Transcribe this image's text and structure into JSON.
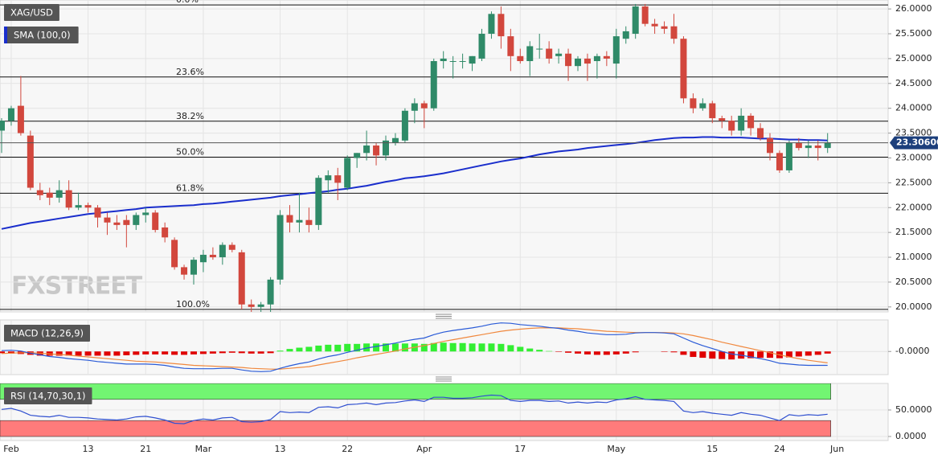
{
  "chart_data": [
    {
      "type": "candlestick",
      "watermark": "FXSTREET",
      "series": [
        {
          "name": "XAG/USD",
          "up_color": "#2f8a68",
          "down_color": "#d2473d",
          "open": [
            23.55,
            23.75,
            24.05,
            23.45,
            22.35,
            22.3,
            22.2,
            22.35,
            22.0,
            22.05,
            22.0,
            21.8,
            21.7,
            21.75,
            21.65,
            21.85,
            21.9,
            21.6,
            21.35,
            20.8,
            20.65,
            20.9,
            21.05,
            21.0,
            21.25,
            21.1,
            20.05,
            20.0,
            20.05,
            20.55,
            21.85,
            21.7,
            21.75,
            21.65,
            22.55,
            22.65,
            22.4,
            23.0,
            23.1,
            23.25,
            23.05,
            23.3,
            23.35,
            23.95,
            24.1,
            24.0,
            24.95,
            24.95,
            24.95,
            24.9,
            25.0,
            25.5,
            25.9,
            25.45,
            25.05,
            24.95,
            25.2,
            25.2,
            25.05,
            25.1,
            24.85,
            25.0,
            24.95,
            25.05,
            24.9,
            25.4,
            25.5,
            26.05,
            25.7,
            25.65,
            25.65,
            25.4,
            24.2,
            24.0,
            24.1,
            23.8,
            23.75,
            23.55,
            23.85,
            23.6,
            23.4,
            23.1,
            22.75,
            23.3,
            23.2,
            23.25,
            23.2,
            null
          ],
          "high": [
            23.8,
            24.05,
            24.65,
            23.55,
            22.5,
            22.4,
            22.55,
            22.55,
            22.3,
            22.1,
            22.05,
            21.9,
            21.85,
            21.85,
            21.9,
            22.0,
            21.95,
            21.7,
            21.4,
            20.85,
            21.0,
            21.15,
            21.2,
            21.3,
            21.3,
            21.15,
            20.15,
            20.1,
            20.6,
            21.95,
            22.05,
            22.3,
            22.0,
            22.65,
            22.75,
            22.8,
            23.05,
            23.1,
            23.55,
            23.3,
            23.45,
            23.5,
            24.0,
            24.2,
            24.15,
            25.0,
            25.15,
            25.05,
            25.1,
            25.05,
            25.6,
            25.95,
            26.05,
            25.6,
            25.2,
            25.35,
            25.5,
            25.35,
            25.2,
            25.2,
            25.05,
            25.1,
            25.1,
            25.15,
            25.6,
            25.65,
            26.1,
            26.1,
            25.8,
            25.75,
            25.9,
            25.45,
            24.3,
            24.2,
            24.15,
            23.85,
            23.85,
            24.0,
            23.9,
            23.7,
            23.5,
            23.15,
            23.35,
            23.4,
            23.35,
            23.35,
            23.5,
            null
          ],
          "low": [
            23.1,
            23.65,
            23.45,
            22.35,
            22.15,
            22.05,
            22.1,
            21.95,
            21.95,
            21.9,
            21.6,
            21.45,
            21.55,
            21.2,
            21.55,
            21.7,
            21.5,
            21.3,
            20.75,
            20.55,
            20.45,
            20.7,
            20.95,
            20.85,
            21.1,
            19.95,
            19.9,
            19.9,
            19.9,
            20.45,
            21.5,
            21.5,
            21.5,
            21.55,
            22.3,
            22.15,
            22.35,
            22.8,
            22.95,
            22.85,
            22.95,
            23.25,
            23.3,
            23.7,
            23.6,
            23.95,
            24.8,
            24.6,
            24.8,
            24.75,
            24.95,
            25.4,
            25.2,
            24.75,
            24.9,
            24.65,
            25.0,
            24.9,
            24.9,
            24.55,
            24.75,
            24.55,
            24.6,
            24.85,
            24.6,
            25.3,
            25.4,
            25.65,
            25.5,
            25.5,
            25.3,
            24.1,
            23.9,
            23.95,
            23.7,
            23.6,
            23.45,
            23.45,
            23.45,
            23.35,
            22.95,
            22.7,
            22.7,
            23.15,
            23.0,
            22.95,
            23.1,
            null
          ],
          "close": [
            23.75,
            24.0,
            23.5,
            22.4,
            22.25,
            22.2,
            22.35,
            22.0,
            22.05,
            22.0,
            21.8,
            21.7,
            21.65,
            21.65,
            21.85,
            21.9,
            21.55,
            21.4,
            20.8,
            20.65,
            20.95,
            21.05,
            21.0,
            21.25,
            21.15,
            20.05,
            20.0,
            20.05,
            20.55,
            21.85,
            21.7,
            21.75,
            21.65,
            22.6,
            22.65,
            22.5,
            23.0,
            23.1,
            23.25,
            23.05,
            23.35,
            23.4,
            23.95,
            24.1,
            24.0,
            24.95,
            25.0,
            24.95,
            24.95,
            25.05,
            25.5,
            25.9,
            25.45,
            25.05,
            24.95,
            25.25,
            25.2,
            25.0,
            25.1,
            24.85,
            25.0,
            24.9,
            25.05,
            25.0,
            25.45,
            25.55,
            26.05,
            25.7,
            25.65,
            25.6,
            25.4,
            24.2,
            24.0,
            24.1,
            23.8,
            23.75,
            23.55,
            23.85,
            23.6,
            23.4,
            23.1,
            22.75,
            23.3,
            23.2,
            23.25,
            23.2,
            23.31,
            null
          ]
        },
        {
          "name": "SMA (100,0)",
          "color": "#1a2ecc",
          "values": [
            21.57,
            21.61,
            21.65,
            21.69,
            21.72,
            21.75,
            21.78,
            21.81,
            21.84,
            21.87,
            21.89,
            21.91,
            21.93,
            21.95,
            21.97,
            22.0,
            22.01,
            22.02,
            22.03,
            22.04,
            22.05,
            22.07,
            22.08,
            22.1,
            22.12,
            22.14,
            22.16,
            22.18,
            22.2,
            22.23,
            22.25,
            22.27,
            22.29,
            22.31,
            22.33,
            22.36,
            22.38,
            22.41,
            22.44,
            22.48,
            22.52,
            22.55,
            22.59,
            22.61,
            22.63,
            22.66,
            22.69,
            22.73,
            22.77,
            22.81,
            22.85,
            22.89,
            22.93,
            22.96,
            22.99,
            23.03,
            23.07,
            23.1,
            23.13,
            23.15,
            23.17,
            23.2,
            23.22,
            23.24,
            23.26,
            23.28,
            23.3,
            23.33,
            23.36,
            23.38,
            23.4,
            23.41,
            23.41,
            23.42,
            23.42,
            23.41,
            23.41,
            23.41,
            23.4,
            23.39,
            23.39,
            23.38,
            23.37,
            23.37,
            23.36,
            23.36,
            23.35,
            null
          ]
        }
      ],
      "fib_levels": [
        {
          "label": "0.0%",
          "value": 26.08
        },
        {
          "label": "23.6%",
          "value": 24.63
        },
        {
          "label": "38.2%",
          "value": 23.74
        },
        {
          "label": "50.0%",
          "value": 23.015
        },
        {
          "label": "61.8%",
          "value": 22.29
        },
        {
          "label": "100.0%",
          "value": 19.95
        }
      ],
      "fib_color": "#111111",
      "current_price": {
        "value": 23.306,
        "label": "23.30600"
      },
      "ylim": [
        19.9,
        26.18
      ],
      "yticks": [
        {
          "value": 20,
          "label": "20.0000"
        },
        {
          "value": 20.5,
          "label": "20.5000"
        },
        {
          "value": 21,
          "label": "21.0000"
        },
        {
          "value": 21.5,
          "label": "21.5000"
        },
        {
          "value": 22,
          "label": "22.0000"
        },
        {
          "value": 22.5,
          "label": "22.5000"
        },
        {
          "value": 23,
          "label": "23.0000"
        },
        {
          "value": 23.5,
          "label": "23.5000"
        },
        {
          "value": 24,
          "label": "24.0000"
        },
        {
          "value": 24.5,
          "label": "24.5000"
        },
        {
          "value": 25,
          "label": "25.0000"
        },
        {
          "value": 25.5,
          "label": "25.5000"
        },
        {
          "value": 26,
          "label": "26.0000"
        }
      ],
      "grid": true
    },
    {
      "type": "macd",
      "title": "MACD (12,26,9)",
      "macd": {
        "color": "#2a5bd7",
        "values": [
          0.02,
          0.03,
          0.01,
          -0.04,
          -0.08,
          -0.12,
          -0.14,
          -0.17,
          -0.19,
          -0.21,
          -0.24,
          -0.26,
          -0.28,
          -0.3,
          -0.3,
          -0.3,
          -0.31,
          -0.33,
          -0.37,
          -0.4,
          -0.41,
          -0.41,
          -0.41,
          -0.4,
          -0.4,
          -0.44,
          -0.47,
          -0.48,
          -0.47,
          -0.4,
          -0.34,
          -0.29,
          -0.25,
          -0.18,
          -0.12,
          -0.08,
          -0.02,
          0.03,
          0.08,
          0.12,
          0.16,
          0.2,
          0.25,
          0.29,
          0.32,
          0.4,
          0.46,
          0.5,
          0.53,
          0.56,
          0.6,
          0.65,
          0.68,
          0.67,
          0.64,
          0.62,
          0.6,
          0.57,
          0.55,
          0.51,
          0.48,
          0.44,
          0.42,
          0.4,
          0.4,
          0.41,
          0.44,
          0.45,
          0.45,
          0.44,
          0.42,
          0.32,
          0.22,
          0.14,
          0.07,
          0.0,
          -0.06,
          -0.09,
          -0.13,
          -0.17,
          -0.22,
          -0.28,
          -0.3,
          -0.32,
          -0.33,
          -0.33,
          -0.33,
          null
        ]
      },
      "signal": {
        "color": "#f0883e",
        "values": [
          -0.05,
          -0.04,
          -0.03,
          -0.03,
          -0.04,
          -0.06,
          -0.07,
          -0.09,
          -0.11,
          -0.13,
          -0.15,
          -0.17,
          -0.19,
          -0.21,
          -0.23,
          -0.24,
          -0.25,
          -0.27,
          -0.29,
          -0.31,
          -0.33,
          -0.34,
          -0.35,
          -0.36,
          -0.37,
          -0.38,
          -0.4,
          -0.41,
          -0.42,
          -0.42,
          -0.4,
          -0.38,
          -0.36,
          -0.32,
          -0.28,
          -0.24,
          -0.2,
          -0.15,
          -0.11,
          -0.07,
          -0.03,
          0.01,
          0.06,
          0.1,
          0.14,
          0.19,
          0.24,
          0.28,
          0.32,
          0.36,
          0.4,
          0.44,
          0.48,
          0.51,
          0.53,
          0.55,
          0.56,
          0.56,
          0.56,
          0.55,
          0.54,
          0.52,
          0.5,
          0.48,
          0.47,
          0.46,
          0.45,
          0.45,
          0.45,
          0.45,
          0.44,
          0.42,
          0.38,
          0.33,
          0.28,
          0.22,
          0.17,
          0.12,
          0.07,
          0.02,
          -0.03,
          -0.08,
          -0.13,
          -0.17,
          -0.21,
          -0.24,
          -0.27,
          null
        ]
      },
      "histogram": {
        "up_color": "#33ee33",
        "down_color": "#e00000",
        "values": [
          -0.04,
          -0.05,
          -0.06,
          -0.08,
          -0.1,
          -0.1,
          -0.1,
          -0.1,
          -0.1,
          -0.1,
          -0.1,
          -0.1,
          -0.1,
          -0.09,
          -0.08,
          -0.07,
          -0.07,
          -0.07,
          -0.08,
          -0.08,
          -0.07,
          -0.06,
          -0.05,
          -0.04,
          -0.03,
          -0.04,
          -0.05,
          -0.05,
          -0.04,
          0.02,
          0.06,
          0.09,
          0.11,
          0.14,
          0.16,
          0.16,
          0.18,
          0.18,
          0.19,
          0.19,
          0.19,
          0.19,
          0.19,
          0.19,
          0.18,
          0.2,
          0.21,
          0.2,
          0.2,
          0.19,
          0.19,
          0.19,
          0.18,
          0.15,
          0.11,
          0.07,
          0.04,
          0.01,
          -0.01,
          -0.03,
          -0.05,
          -0.07,
          -0.08,
          -0.08,
          -0.07,
          -0.05,
          -0.02,
          0.0,
          0.0,
          -0.01,
          -0.02,
          -0.08,
          -0.13,
          -0.15,
          -0.17,
          -0.18,
          -0.19,
          -0.17,
          -0.16,
          -0.15,
          -0.15,
          -0.16,
          -0.14,
          -0.12,
          -0.1,
          -0.08,
          -0.05,
          null
        ]
      },
      "ylim": [
        -0.55,
        0.75
      ],
      "yticks": [
        {
          "value": 0,
          "label": "-0.0000"
        }
      ]
    },
    {
      "type": "rsi",
      "title": "RSI (14,70,30,1)",
      "color": "#3050d0",
      "values": [
        51,
        53,
        48,
        40,
        38,
        37,
        40,
        36,
        36,
        35,
        33,
        32,
        31,
        33,
        37,
        38,
        35,
        31,
        25,
        24,
        30,
        33,
        31,
        35,
        36,
        28,
        27,
        28,
        32,
        47,
        45,
        46,
        45,
        55,
        56,
        54,
        60,
        61,
        63,
        60,
        63,
        64,
        67,
        69,
        66,
        74,
        74,
        72,
        72,
        73,
        76,
        78,
        77,
        68,
        66,
        68,
        68,
        66,
        67,
        63,
        65,
        63,
        65,
        64,
        69,
        71,
        75,
        70,
        69,
        68,
        66,
        48,
        45,
        47,
        44,
        42,
        40,
        45,
        42,
        40,
        35,
        30,
        41,
        39,
        41,
        40,
        42,
        null
      ],
      "overbought": 70,
      "oversold": 30,
      "overbought_color": "#72f572",
      "oversold_color": "#ff7b7b",
      "ylim": [
        -7.6,
        100
      ],
      "yticks": [
        {
          "value": 50,
          "label": "50.0000"
        },
        {
          "value": 0,
          "label": "0.0000"
        }
      ],
      "categories": [
        null,
        "Feb",
        null,
        null,
        null,
        null,
        null,
        null,
        null,
        "13",
        null,
        null,
        null,
        null,
        null,
        "21",
        null,
        null,
        null,
        null,
        null,
        "Mar",
        null,
        null,
        null,
        null,
        null,
        null,
        null,
        "13",
        null,
        null,
        null,
        null,
        null,
        null,
        "22",
        null,
        null,
        null,
        null,
        null,
        null,
        null,
        "Apr",
        null,
        null,
        null,
        null,
        null,
        null,
        null,
        null,
        null,
        "17",
        null,
        null,
        null,
        null,
        null,
        null,
        null,
        null,
        null,
        "May",
        null,
        null,
        null,
        null,
        null,
        null,
        null,
        null,
        null,
        "15",
        null,
        null,
        null,
        null,
        null,
        null,
        "24",
        null,
        null,
        null,
        null,
        null,
        "Jun"
      ]
    }
  ]
}
